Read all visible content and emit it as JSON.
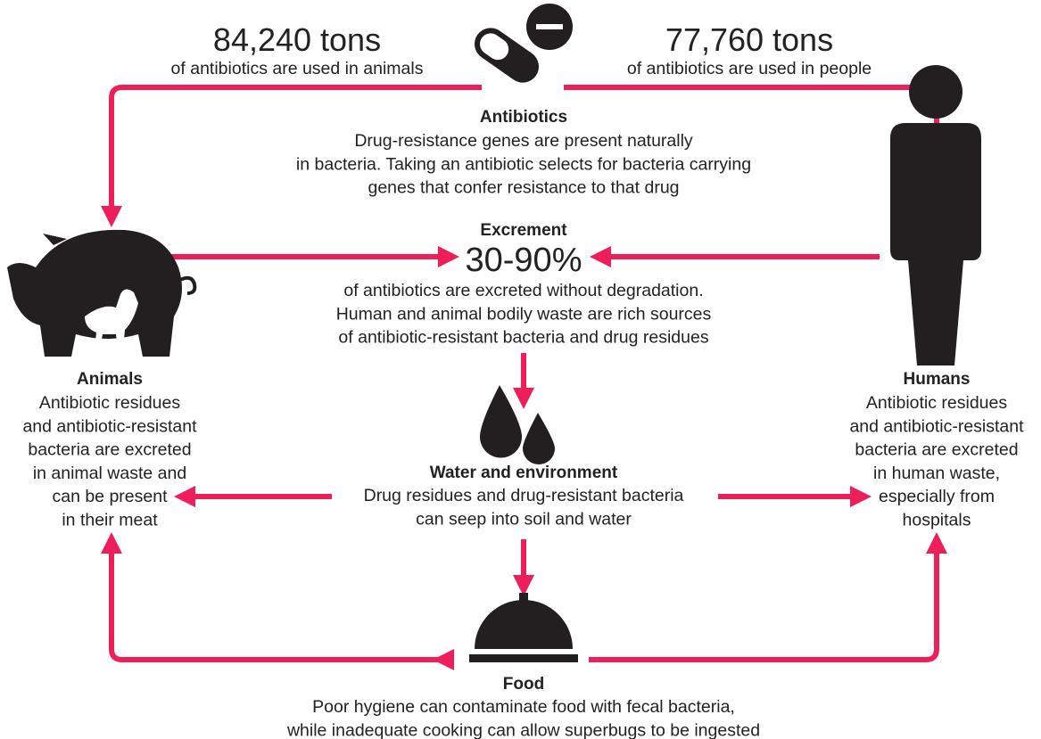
{
  "antibiotics": {
    "animals_amount": "84,240 tons",
    "animals_text": "of antibiotics are used in animals",
    "people_amount": "77,760 tons",
    "people_text": "of antibiotics are used in people",
    "title": "Antibiotics",
    "lines": [
      "Drug-resistance genes are present naturally",
      "in bacteria. Taking an antibiotic selects for bacteria carrying",
      "genes that confer resistance to that drug"
    ]
  },
  "excrement": {
    "title": "Excrement",
    "amount": "30-90%",
    "lines": [
      "of antibiotics are excreted without degradation.",
      "Human and animal bodily waste are rich sources",
      "of antibiotic-resistant bacteria and drug residues"
    ]
  },
  "animals": {
    "title": "Animals",
    "lines": [
      "Antibiotic residues",
      "and antibiotic-resistant",
      "bacteria are excreted",
      "in animal waste and",
      "can be present",
      "in their meat"
    ]
  },
  "humans": {
    "title": "Humans",
    "lines": [
      "Antibiotic residues",
      "and antibiotic-resistant",
      "bacteria are excreted",
      "in human waste,",
      "especially from",
      "hospitals"
    ]
  },
  "water": {
    "title": "Water and environment",
    "lines": [
      "Drug residues and drug-resistant bacteria",
      "can seep into soil and water"
    ]
  },
  "food": {
    "title": "Food",
    "lines": [
      "Poor hygiene can contaminate food with fecal bacteria,",
      "while inadequate cooking can allow superbugs to be ingested"
    ]
  }
}
